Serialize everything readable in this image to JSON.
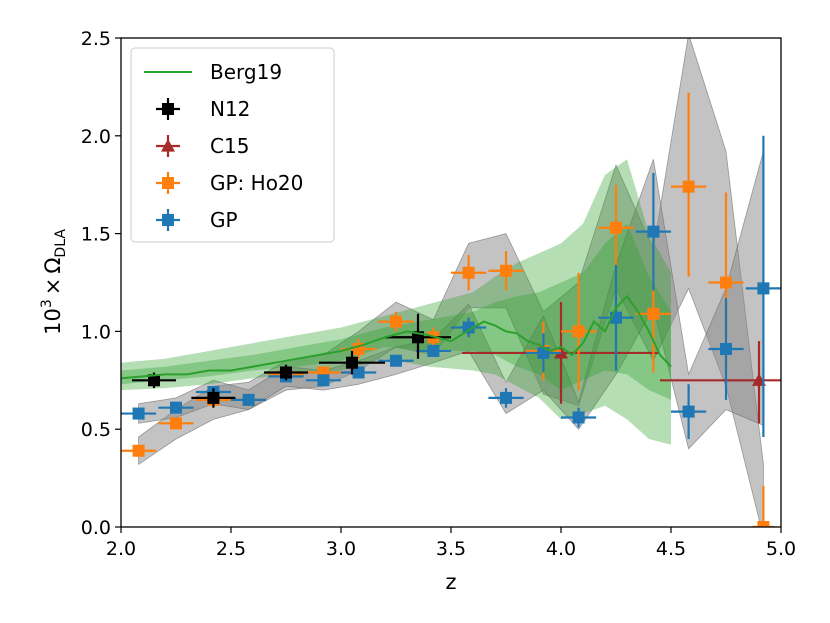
{
  "chart_data": {
    "type": "scatter",
    "xlabel": "z",
    "ylabel_prefix": "10",
    "ylabel_sup": "3",
    "ylabel_times": "×",
    "ylabel_omega": "Ω",
    "ylabel_sub": "DLA",
    "xlim": [
      2.0,
      5.0
    ],
    "ylim": [
      0.0,
      2.5
    ],
    "xticks": [
      2.0,
      2.5,
      3.0,
      3.5,
      4.0,
      4.5,
      5.0
    ],
    "yticks": [
      0.0,
      0.5,
      1.0,
      1.5,
      2.0,
      2.5
    ],
    "xtick_labels": [
      "2.0",
      "2.5",
      "3.0",
      "3.5",
      "4.0",
      "4.5",
      "5.0"
    ],
    "ytick_labels": [
      "0.0",
      "0.5",
      "1.0",
      "1.5",
      "2.0",
      "2.5"
    ],
    "legend_position": "top-left",
    "colors": {
      "berg": "#2ca02c",
      "n12": "#000000",
      "c15": "#a52a2a",
      "ho20": "#ff7f0e",
      "gp": "#1f77b4",
      "gray_band": "#808080",
      "green_band": "#2ca02c"
    },
    "bands": [
      {
        "name": "gp-ho20-band",
        "color": "#888888",
        "x": [
          2.08,
          2.25,
          2.42,
          2.58,
          2.75,
          2.92,
          3.08,
          3.25,
          3.42,
          3.58,
          3.75,
          3.92,
          4.08,
          4.25,
          4.42,
          4.58,
          4.75,
          4.92
        ],
        "low": [
          0.32,
          0.45,
          0.55,
          0.6,
          0.7,
          0.72,
          0.8,
          0.92,
          0.88,
          1.12,
          1.12,
          0.68,
          0.62,
          1.22,
          0.85,
          1.22,
          0.72,
          -0.05
        ],
        "high": [
          0.46,
          0.6,
          0.72,
          0.74,
          0.85,
          0.88,
          1.0,
          1.15,
          1.06,
          1.45,
          1.5,
          1.1,
          1.25,
          1.85,
          1.42,
          2.52,
          1.92,
          0.32
        ]
      },
      {
        "name": "gp-band",
        "color": "#888888",
        "x": [
          2.08,
          2.25,
          2.42,
          2.58,
          2.75,
          2.92,
          3.08,
          3.25,
          3.42,
          3.58,
          3.75,
          3.92,
          4.08,
          4.25,
          4.42,
          4.58,
          4.75,
          4.92
        ],
        "low": [
          0.53,
          0.56,
          0.63,
          0.6,
          0.72,
          0.7,
          0.73,
          0.78,
          0.84,
          0.9,
          0.58,
          0.7,
          0.5,
          0.78,
          1.12,
          0.4,
          0.6,
          0.52
        ],
        "high": [
          0.63,
          0.66,
          0.75,
          0.7,
          0.82,
          0.8,
          0.85,
          0.92,
          0.96,
          1.14,
          0.74,
          1.08,
          0.64,
          1.34,
          1.88,
          0.78,
          1.22,
          1.92
        ]
      }
    ],
    "berg_band_outer": {
      "x": [
        2.0,
        2.2,
        2.4,
        2.6,
        2.8,
        3.0,
        3.2,
        3.4,
        3.6,
        3.7,
        3.8,
        3.9,
        4.0,
        4.1,
        4.2,
        4.3,
        4.4,
        4.5
      ],
      "low": [
        0.7,
        0.71,
        0.73,
        0.76,
        0.78,
        0.8,
        0.86,
        0.82,
        0.8,
        0.78,
        0.72,
        0.66,
        0.55,
        0.58,
        0.62,
        0.55,
        0.45,
        0.42
      ],
      "high": [
        0.84,
        0.86,
        0.9,
        0.94,
        0.98,
        1.02,
        1.08,
        1.14,
        1.2,
        1.28,
        1.35,
        1.4,
        1.45,
        1.55,
        1.8,
        1.88,
        1.5,
        1.3
      ]
    },
    "berg_band_inner": {
      "x": [
        2.0,
        2.2,
        2.4,
        2.6,
        2.8,
        3.0,
        3.2,
        3.4,
        3.6,
        3.7,
        3.8,
        3.9,
        4.0,
        4.1,
        4.2,
        4.3,
        4.4,
        4.5
      ],
      "low": [
        0.73,
        0.75,
        0.77,
        0.8,
        0.82,
        0.85,
        0.92,
        0.9,
        0.9,
        0.88,
        0.82,
        0.78,
        0.7,
        0.75,
        0.8,
        0.78,
        0.7,
        0.65
      ],
      "high": [
        0.8,
        0.82,
        0.85,
        0.88,
        0.92,
        0.96,
        1.02,
        1.06,
        1.1,
        1.15,
        1.18,
        1.2,
        1.25,
        1.3,
        1.45,
        1.55,
        1.28,
        1.1
      ]
    },
    "series": [
      {
        "name": "Berg19",
        "kind": "line",
        "color": "#2ca02c",
        "x": [
          2.0,
          2.1,
          2.2,
          2.3,
          2.4,
          2.5,
          2.6,
          2.7,
          2.8,
          2.9,
          3.0,
          3.1,
          3.2,
          3.3,
          3.4,
          3.5,
          3.6,
          3.65,
          3.7,
          3.75,
          3.8,
          3.85,
          3.9,
          3.95,
          4.0,
          4.05,
          4.1,
          4.15,
          4.2,
          4.25,
          4.3,
          4.35,
          4.4,
          4.45,
          4.5
        ],
        "y": [
          0.76,
          0.77,
          0.78,
          0.78,
          0.8,
          0.8,
          0.82,
          0.84,
          0.86,
          0.88,
          0.9,
          0.93,
          0.97,
          1.0,
          0.98,
          0.95,
          1.02,
          1.05,
          1.03,
          1.0,
          0.99,
          0.95,
          0.93,
          0.9,
          0.92,
          0.88,
          0.94,
          1.05,
          1.0,
          1.12,
          1.18,
          1.1,
          1.0,
          0.88,
          0.82
        ]
      },
      {
        "name": "N12",
        "kind": "errorbar",
        "marker": "square",
        "color": "#000000",
        "points": [
          {
            "x": 2.15,
            "y": 0.75,
            "xerr": 0.1,
            "yerr_low": 0.04,
            "yerr_high": 0.04
          },
          {
            "x": 2.42,
            "y": 0.66,
            "xerr": 0.1,
            "yerr_low": 0.05,
            "yerr_high": 0.05
          },
          {
            "x": 2.75,
            "y": 0.79,
            "xerr": 0.1,
            "yerr_low": 0.04,
            "yerr_high": 0.04
          },
          {
            "x": 3.05,
            "y": 0.84,
            "xerr": 0.15,
            "yerr_low": 0.06,
            "yerr_high": 0.06
          },
          {
            "x": 3.35,
            "y": 0.97,
            "xerr": 0.15,
            "yerr_low": 0.11,
            "yerr_high": 0.12
          }
        ]
      },
      {
        "name": "C15",
        "kind": "errorbar",
        "marker": "triangle",
        "color": "#a52a2a",
        "points": [
          {
            "x": 4.0,
            "y": 0.89,
            "xerr": 0.45,
            "yerr_low": 0.26,
            "yerr_high": 0.26
          },
          {
            "x": 4.9,
            "y": 0.75,
            "xerr": 0.45,
            "yerr_low": 0.22,
            "yerr_high": 0.2
          }
        ]
      },
      {
        "name": "GP: Ho20",
        "kind": "errorbar",
        "marker": "square",
        "color": "#ff7f0e",
        "points": [
          {
            "x": 2.08,
            "y": 0.39,
            "xerr": 0.08,
            "yerr_low": 0.02,
            "yerr_high": 0.02
          },
          {
            "x": 2.25,
            "y": 0.53,
            "xerr": 0.08,
            "yerr_low": 0.03,
            "yerr_high": 0.03
          },
          {
            "x": 2.42,
            "y": 0.65,
            "xerr": 0.08,
            "yerr_low": 0.03,
            "yerr_high": 0.03
          },
          {
            "x": 2.58,
            "y": 0.65,
            "xerr": 0.08,
            "yerr_low": 0.03,
            "yerr_high": 0.03
          },
          {
            "x": 2.75,
            "y": 0.78,
            "xerr": 0.08,
            "yerr_low": 0.03,
            "yerr_high": 0.03
          },
          {
            "x": 2.92,
            "y": 0.79,
            "xerr": 0.08,
            "yerr_low": 0.03,
            "yerr_high": 0.03
          },
          {
            "x": 3.08,
            "y": 0.91,
            "xerr": 0.08,
            "yerr_low": 0.05,
            "yerr_high": 0.05
          },
          {
            "x": 3.25,
            "y": 1.05,
            "xerr": 0.08,
            "yerr_low": 0.05,
            "yerr_high": 0.05
          },
          {
            "x": 3.42,
            "y": 0.97,
            "xerr": 0.08,
            "yerr_low": 0.05,
            "yerr_high": 0.05
          },
          {
            "x": 3.58,
            "y": 1.3,
            "xerr": 0.08,
            "yerr_low": 0.09,
            "yerr_high": 0.09
          },
          {
            "x": 3.75,
            "y": 1.31,
            "xerr": 0.08,
            "yerr_low": 0.1,
            "yerr_high": 0.1
          },
          {
            "x": 3.92,
            "y": 0.9,
            "xerr": 0.08,
            "yerr_low": 0.15,
            "yerr_high": 0.15
          },
          {
            "x": 4.08,
            "y": 1.0,
            "xerr": 0.08,
            "yerr_low": 0.3,
            "yerr_high": 0.3
          },
          {
            "x": 4.25,
            "y": 1.53,
            "xerr": 0.08,
            "yerr_low": 0.21,
            "yerr_high": 0.22
          },
          {
            "x": 4.42,
            "y": 1.09,
            "xerr": 0.08,
            "yerr_low": 0.3,
            "yerr_high": 0.3
          },
          {
            "x": 4.58,
            "y": 1.74,
            "xerr": 0.08,
            "yerr_low": 0.46,
            "yerr_high": 0.48
          },
          {
            "x": 4.75,
            "y": 1.25,
            "xerr": 0.08,
            "yerr_low": 0.46,
            "yerr_high": 0.46
          },
          {
            "x": 4.92,
            "y": 0.0,
            "xerr": 0.05,
            "yerr_low": 0.0,
            "yerr_high": 0.21
          }
        ]
      },
      {
        "name": "GP",
        "kind": "errorbar",
        "marker": "square",
        "color": "#1f77b4",
        "points": [
          {
            "x": 2.08,
            "y": 0.58,
            "xerr": 0.08,
            "yerr_low": 0.02,
            "yerr_high": 0.02
          },
          {
            "x": 2.25,
            "y": 0.61,
            "xerr": 0.08,
            "yerr_low": 0.02,
            "yerr_high": 0.02
          },
          {
            "x": 2.42,
            "y": 0.69,
            "xerr": 0.08,
            "yerr_low": 0.02,
            "yerr_high": 0.02
          },
          {
            "x": 2.58,
            "y": 0.65,
            "xerr": 0.08,
            "yerr_low": 0.02,
            "yerr_high": 0.02
          },
          {
            "x": 2.75,
            "y": 0.77,
            "xerr": 0.08,
            "yerr_low": 0.02,
            "yerr_high": 0.02
          },
          {
            "x": 2.92,
            "y": 0.75,
            "xerr": 0.08,
            "yerr_low": 0.02,
            "yerr_high": 0.02
          },
          {
            "x": 3.08,
            "y": 0.79,
            "xerr": 0.08,
            "yerr_low": 0.03,
            "yerr_high": 0.03
          },
          {
            "x": 3.25,
            "y": 0.85,
            "xerr": 0.08,
            "yerr_low": 0.03,
            "yerr_high": 0.03
          },
          {
            "x": 3.42,
            "y": 0.9,
            "xerr": 0.08,
            "yerr_low": 0.03,
            "yerr_high": 0.03
          },
          {
            "x": 3.58,
            "y": 1.02,
            "xerr": 0.08,
            "yerr_low": 0.05,
            "yerr_high": 0.05
          },
          {
            "x": 3.75,
            "y": 0.66,
            "xerr": 0.08,
            "yerr_low": 0.05,
            "yerr_high": 0.05
          },
          {
            "x": 3.92,
            "y": 0.89,
            "xerr": 0.08,
            "yerr_low": 0.1,
            "yerr_high": 0.1
          },
          {
            "x": 4.08,
            "y": 0.56,
            "xerr": 0.08,
            "yerr_low": 0.05,
            "yerr_high": 0.05
          },
          {
            "x": 4.25,
            "y": 1.07,
            "xerr": 0.08,
            "yerr_low": 0.27,
            "yerr_high": 0.27
          },
          {
            "x": 4.42,
            "y": 1.51,
            "xerr": 0.08,
            "yerr_low": 0.3,
            "yerr_high": 0.3
          },
          {
            "x": 4.58,
            "y": 0.59,
            "xerr": 0.08,
            "yerr_low": 0.14,
            "yerr_high": 0.14
          },
          {
            "x": 4.75,
            "y": 0.91,
            "xerr": 0.08,
            "yerr_low": 0.26,
            "yerr_high": 0.26
          },
          {
            "x": 4.92,
            "y": 1.22,
            "xerr": 0.08,
            "yerr_low": 0.76,
            "yerr_high": 0.78
          }
        ]
      }
    ]
  }
}
